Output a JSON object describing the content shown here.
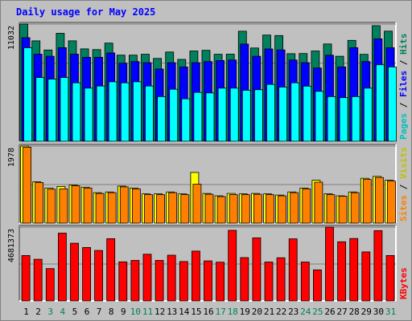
{
  "chart_data": {
    "type": "bar",
    "title": "Daily usage for May 2025",
    "categories": [
      "1",
      "2",
      "3",
      "4",
      "5",
      "6",
      "7",
      "8",
      "9",
      "10",
      "11",
      "12",
      "13",
      "14",
      "15",
      "16",
      "17",
      "18",
      "19",
      "20",
      "21",
      "22",
      "23",
      "24",
      "25",
      "26",
      "27",
      "28",
      "29",
      "30",
      "31"
    ],
    "weekend_days": [
      "3",
      "4",
      "10",
      "11",
      "17",
      "18",
      "24",
      "25",
      "31"
    ],
    "grid": true,
    "panels": [
      {
        "name": "hits-files-pages",
        "ymax_label": "11032",
        "ymax": 11032,
        "legend": [
          "Pages",
          "Files",
          "Hits"
        ],
        "series": [
          {
            "name": "Hits",
            "color": "#00805c",
            "values": [
              11032,
              9450,
              8590,
              10160,
              9450,
              8700,
              8630,
              9240,
              8110,
              8110,
              8190,
              7800,
              8400,
              7710,
              8500,
              8560,
              8190,
              8200,
              10360,
              8780,
              10000,
              9950,
              8240,
              8260,
              8500,
              9160,
              8000,
              9500,
              8180,
              10880,
              10370
            ]
          },
          {
            "name": "Files",
            "color": "#0000ff",
            "values": [
              9750,
              8200,
              8000,
              8810,
              8200,
              7900,
              7900,
              8310,
              7350,
              7500,
              7400,
              6800,
              7400,
              7000,
              7400,
              7500,
              7600,
              7650,
              9150,
              8000,
              8690,
              8600,
              7650,
              7400,
              6900,
              8100,
              7000,
              8810,
              7500,
              9640,
              8800
            ]
          },
          {
            "name": "Pages",
            "color": "#00ffff",
            "values": [
              8800,
              6000,
              5850,
              6000,
              5500,
              5000,
              5200,
              5600,
              5500,
              5600,
              5200,
              4200,
              4900,
              4000,
              4600,
              4550,
              5000,
              5000,
              4800,
              4850,
              5350,
              5100,
              5500,
              5180,
              4700,
              4200,
              4100,
              4200,
              5000,
              7200,
              7000
            ]
          }
        ]
      },
      {
        "name": "visits-sites",
        "ymax_label": "1978",
        "ymax": 1978,
        "legend": [
          "Sites",
          "Visits"
        ],
        "series": [
          {
            "name": "Visits",
            "color": "#ffff00",
            "values": [
              1978,
              1060,
              900,
              940,
              980,
              920,
              780,
              800,
              950,
              900,
              750,
              750,
              800,
              750,
              1300,
              760,
              700,
              760,
              750,
              760,
              750,
              720,
              800,
              900,
              1100,
              750,
              700,
              800,
              1150,
              1200,
              1100
            ]
          },
          {
            "name": "Sites",
            "color": "#ff8000",
            "values": [
              1950,
              1040,
              870,
              880,
              960,
              900,
              760,
              780,
              930,
              880,
              730,
              730,
              780,
              730,
              1000,
              740,
              680,
              730,
              730,
              740,
              730,
              700,
              780,
              880,
              1050,
              730,
              690,
              780,
              1120,
              1170,
              1080
            ]
          }
        ]
      },
      {
        "name": "kbytes",
        "ymax_label": "4681373",
        "ymax": 4681373,
        "legend": [
          "KBytes"
        ],
        "series": [
          {
            "name": "KBytes",
            "color": "#ff0000",
            "values": [
              2880000,
              2640000,
              2050000,
              4300000,
              3660000,
              3390000,
              3200000,
              3950000,
              2480000,
              2570000,
              2960000,
              2570000,
              2900000,
              2500000,
              3160000,
              2540000,
              2460000,
              4480000,
              2750000,
              4000000,
              2470000,
              2740000,
              3940000,
              2470000,
              1970000,
              4681373,
              3750000,
              3960000,
              3110000,
              4460000,
              2880000
            ]
          }
        ]
      }
    ]
  }
}
